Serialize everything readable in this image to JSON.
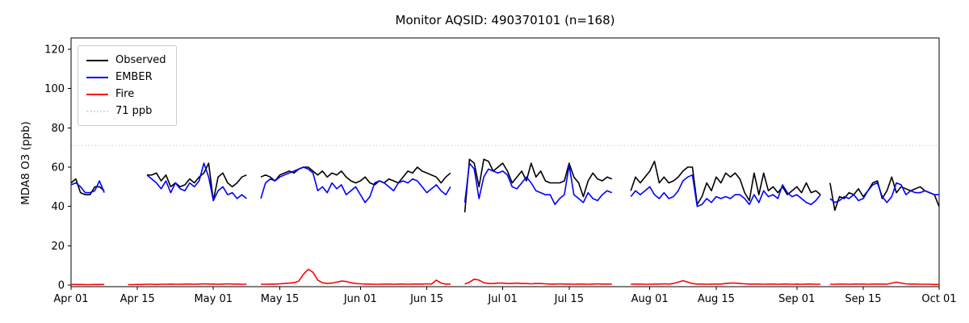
{
  "chart_data": {
    "type": "line",
    "title": "Monitor AQSID: 490370101 (n=168)",
    "ylabel": "MDA8 O3 (ppb)",
    "xlabel": "",
    "n_points": 168,
    "x_range_days": 183,
    "x_start_label": "Apr 01",
    "x_end_label": "Oct 01",
    "ylim": [
      0,
      125
    ],
    "grid": false,
    "legend_position": "upper left",
    "yticks": [
      0,
      20,
      40,
      60,
      80,
      100,
      120
    ],
    "xticks": [
      {
        "label": "Apr 01",
        "day": 0
      },
      {
        "label": "Apr 15",
        "day": 14
      },
      {
        "label": "May 01",
        "day": 30
      },
      {
        "label": "May 15",
        "day": 44
      },
      {
        "label": "Jun 01",
        "day": 61
      },
      {
        "label": "Jun 15",
        "day": 75
      },
      {
        "label": "Jul 01",
        "day": 91
      },
      {
        "label": "Jul 15",
        "day": 105
      },
      {
        "label": "Aug 01",
        "day": 122
      },
      {
        "label": "Aug 15",
        "day": 136
      },
      {
        "label": "Sep 01",
        "day": 153
      },
      {
        "label": "Sep 15",
        "day": 167
      },
      {
        "label": "Oct 01",
        "day": 183
      }
    ],
    "threshold": {
      "label": "71 ppb",
      "value": 71,
      "color": "#dcdcdc",
      "style": "dotted"
    },
    "series": [
      {
        "name": "Observed",
        "color": "#000000",
        "values": [
          52,
          54,
          47,
          46,
          46,
          50,
          50,
          48,
          null,
          null,
          null,
          null,
          null,
          null,
          null,
          null,
          56,
          56,
          57,
          53,
          56,
          50,
          52,
          50,
          51,
          54,
          52,
          55,
          57,
          62,
          43,
          55,
          57,
          52,
          50,
          52,
          55,
          56,
          null,
          null,
          55,
          56,
          55,
          53,
          56,
          57,
          58,
          57,
          59,
          60,
          60,
          58,
          56,
          58,
          55,
          57,
          56,
          58,
          55,
          53,
          52,
          53,
          55,
          52,
          51,
          53,
          52,
          54,
          53,
          52,
          55,
          58,
          57,
          60,
          58,
          57,
          56,
          55,
          52,
          55,
          57,
          null,
          null,
          37,
          64,
          62,
          50,
          64,
          63,
          58,
          60,
          62,
          58,
          52,
          55,
          58,
          53,
          62,
          55,
          58,
          53,
          52,
          52,
          52,
          53,
          62,
          55,
          52,
          45,
          53,
          57,
          54,
          53,
          55,
          54,
          null,
          null,
          null,
          48,
          55,
          52,
          55,
          58,
          63,
          52,
          55,
          52,
          53,
          55,
          58,
          60,
          60,
          41,
          45,
          52,
          48,
          55,
          52,
          57,
          55,
          57,
          54,
          47,
          43,
          57,
          46,
          57,
          48,
          50,
          47,
          50,
          46,
          48,
          50,
          47,
          52,
          47,
          48,
          46,
          null,
          52,
          38,
          45,
          44,
          47,
          46,
          49,
          45,
          48,
          52,
          53,
          44,
          48,
          55,
          47,
          50,
          49,
          48,
          49,
          50,
          48,
          47,
          46,
          40
        ]
      },
      {
        "name": "EMBER",
        "color": "#0000ff",
        "values": [
          51,
          52,
          50,
          47,
          47,
          48,
          53,
          47,
          null,
          null,
          null,
          null,
          null,
          null,
          null,
          null,
          56,
          54,
          52,
          49,
          53,
          47,
          52,
          49,
          48,
          52,
          50,
          53,
          62,
          55,
          43,
          48,
          50,
          46,
          47,
          44,
          46,
          44,
          null,
          null,
          44,
          52,
          54,
          53,
          55,
          56,
          57,
          58,
          59,
          60,
          59,
          57,
          48,
          50,
          47,
          52,
          49,
          51,
          46,
          48,
          50,
          46,
          42,
          45,
          52,
          53,
          52,
          50,
          48,
          52,
          53,
          52,
          54,
          53,
          50,
          47,
          49,
          51,
          48,
          46,
          50,
          null,
          null,
          42,
          62,
          59,
          44,
          55,
          59,
          58,
          57,
          58,
          56,
          50,
          49,
          52,
          55,
          52,
          48,
          47,
          46,
          46,
          41,
          44,
          46,
          61,
          46,
          44,
          42,
          47,
          44,
          43,
          46,
          48,
          47,
          null,
          null,
          null,
          45,
          48,
          46,
          48,
          50,
          46,
          44,
          47,
          44,
          45,
          48,
          53,
          55,
          56,
          40,
          41,
          44,
          42,
          45,
          44,
          45,
          44,
          46,
          46,
          44,
          41,
          46,
          42,
          48,
          45,
          46,
          44,
          51,
          47,
          45,
          46,
          44,
          42,
          41,
          43,
          46,
          null,
          44,
          42,
          43,
          45,
          44,
          46,
          43,
          44,
          48,
          51,
          52,
          45,
          42,
          45,
          52,
          51,
          46,
          48,
          47,
          47,
          48,
          47,
          46,
          46
        ]
      },
      {
        "name": "Fire",
        "color": "#ff0000",
        "values": [
          0.3,
          0.3,
          0.3,
          0.2,
          0.2,
          0.3,
          0.3,
          0.3,
          null,
          null,
          null,
          null,
          0.2,
          0.2,
          0.3,
          0.3,
          0.4,
          0.4,
          0.3,
          0.4,
          0.4,
          0.5,
          0.4,
          0.4,
          0.5,
          0.5,
          0.4,
          0.5,
          0.6,
          0.5,
          0.5,
          0.4,
          0.5,
          0.6,
          0.5,
          0.5,
          0.4,
          0.4,
          null,
          null,
          0.4,
          0.4,
          0.5,
          0.5,
          0.6,
          0.8,
          1.0,
          1.2,
          2.0,
          5.5,
          8.0,
          6.5,
          2.5,
          1.2,
          0.8,
          1.0,
          1.5,
          2.0,
          1.8,
          1.2,
          0.8,
          0.6,
          0.5,
          0.5,
          0.4,
          0.4,
          0.5,
          0.5,
          0.4,
          0.5,
          0.5,
          0.4,
          0.5,
          0.5,
          0.5,
          0.6,
          0.5,
          2.5,
          1.0,
          0.5,
          0.5,
          null,
          null,
          0.5,
          1.5,
          3.0,
          2.5,
          1.2,
          0.8,
          0.8,
          1.0,
          1.0,
          0.8,
          0.8,
          1.0,
          0.8,
          0.8,
          0.6,
          0.8,
          0.8,
          0.6,
          0.5,
          0.5,
          0.6,
          0.5,
          0.5,
          0.4,
          0.5,
          0.5,
          0.4,
          0.5,
          0.6,
          0.5,
          0.5,
          0.5,
          null,
          null,
          null,
          0.4,
          0.5,
          0.5,
          0.4,
          0.4,
          0.5,
          0.5,
          0.6,
          0.5,
          0.8,
          1.5,
          2.2,
          1.5,
          0.8,
          0.5,
          0.5,
          0.4,
          0.5,
          0.5,
          0.5,
          0.8,
          1.0,
          1.0,
          0.8,
          0.6,
          0.5,
          0.5,
          0.5,
          0.4,
          0.5,
          0.5,
          0.4,
          0.5,
          0.5,
          0.4,
          0.5,
          0.4,
          0.5,
          0.5,
          0.4,
          0.4,
          null,
          0.4,
          0.4,
          0.5,
          0.5,
          0.4,
          0.5,
          0.5,
          0.5,
          0.4,
          0.5,
          0.5,
          0.5,
          0.4,
          1.0,
          1.5,
          1.0,
          0.6,
          0.5,
          0.5,
          0.4,
          0.4,
          0.4,
          0.3,
          0.3
        ]
      }
    ]
  }
}
